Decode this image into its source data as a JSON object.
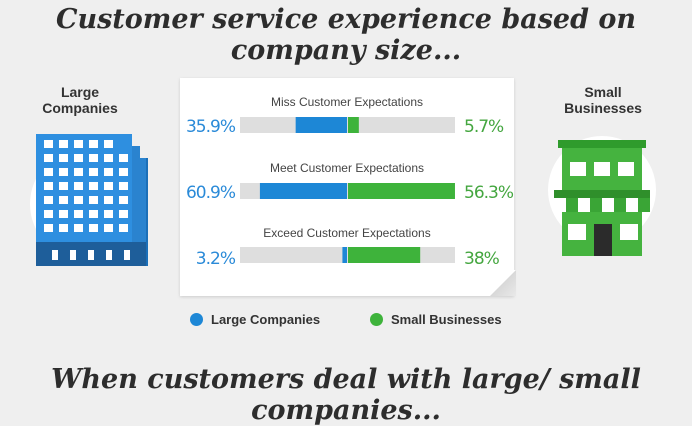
{
  "title": "Customer service experience based on company size...",
  "subtitle": "When customers deal with large/ small companies...",
  "colors": {
    "large": "#1d87d6",
    "small": "#3eb33b",
    "track": "#dedede"
  },
  "left_panel": {
    "label_line1": "Large",
    "label_line2": "Companies",
    "icon": "office-building-icon"
  },
  "right_panel": {
    "label_line1": "Small",
    "label_line2": "Businesses",
    "icon": "storefront-icon"
  },
  "chart_data": {
    "type": "bar",
    "categories": [
      "Miss Customer Expectations",
      "Meet Customer Expectations",
      "Exceed Customer Expectations"
    ],
    "series": [
      {
        "name": "Large Companies",
        "values": [
          35.9,
          60.9,
          3.2
        ],
        "labels": [
          "35.9%",
          "60.9%",
          "3.2%"
        ]
      },
      {
        "name": "Small Businesses",
        "values": [
          5.7,
          56.3,
          38
        ],
        "labels": [
          "5.7%",
          "56.3%",
          "38%"
        ]
      }
    ],
    "legend": [
      "Large Companies",
      "Small Businesses"
    ],
    "legend_position": "bottom"
  }
}
